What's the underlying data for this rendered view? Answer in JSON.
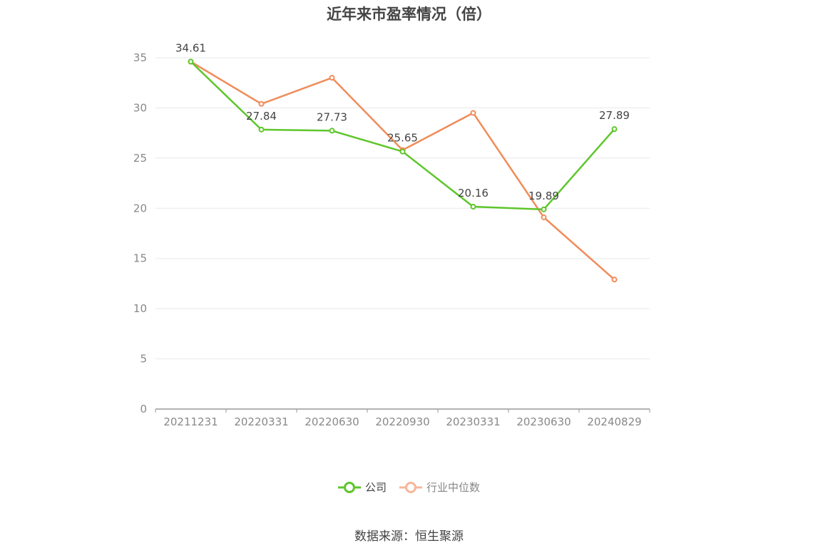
{
  "title": "近年来市盈率情况（倍）",
  "source": "数据来源：恒生聚源",
  "colors": {
    "company": "#5ec62b",
    "industry": "#f08c5a",
    "industry_legend": "#f5b79a",
    "axis": "#999999",
    "grid": "#e6e8ee"
  },
  "chart_data": {
    "type": "line",
    "title": "近年来市盈率情况（倍）",
    "categories": [
      "20211231",
      "20220331",
      "20220630",
      "20220930",
      "20230331",
      "20230630",
      "20240829"
    ],
    "y_ticks": [
      "0",
      "5",
      "10",
      "15",
      "20",
      "25",
      "30",
      "35"
    ],
    "ylim": [
      0,
      35
    ],
    "grid": true,
    "legend_position": "bottom",
    "series": [
      {
        "name": "公司",
        "values": [
          34.61,
          27.84,
          27.73,
          25.65,
          20.16,
          19.89,
          27.89
        ],
        "labels": [
          "34.61",
          "27.84",
          "27.73",
          "25.65",
          "20.16",
          "19.89",
          "27.89"
        ]
      },
      {
        "name": "行业中位数",
        "values": [
          34.61,
          30.4,
          33.0,
          25.8,
          29.5,
          19.1,
          12.9
        ]
      }
    ]
  }
}
